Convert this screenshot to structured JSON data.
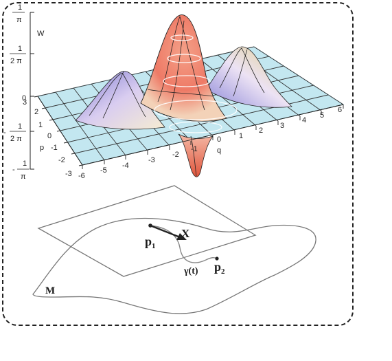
{
  "wigner_plot": {
    "z_axis_label": "W",
    "x_axis_label": "q",
    "y_axis_label": "p",
    "z_ticks": [
      {
        "num": "1",
        "den": "π",
        "sign": ""
      },
      {
        "num": "1",
        "den": "2 π",
        "sign": ""
      },
      {
        "plain": "0"
      },
      {
        "num": "1",
        "den": "2 π",
        "sign": "-"
      },
      {
        "num": "1",
        "den": "π",
        "sign": "-"
      }
    ],
    "q_ticks": [
      "-6",
      "-5",
      "-4",
      "-3",
      "-2",
      "-1",
      "0",
      "1",
      "2",
      "3",
      "4",
      "5",
      "6"
    ],
    "p_ticks": [
      "3",
      "2",
      "1",
      "0",
      "-1",
      "-2",
      "-3"
    ],
    "colors": {
      "plane": "#bfe6ef",
      "peak": "#f07a68",
      "lobe": "#8a86d8",
      "grid": "#333333"
    }
  },
  "manifold_diagram": {
    "manifold_label": "M",
    "point1_label": "p",
    "point1_sub": "1",
    "point2_label": "p",
    "point2_sub": "2",
    "vector_label": "X",
    "curve_label": "γ(t)"
  }
}
